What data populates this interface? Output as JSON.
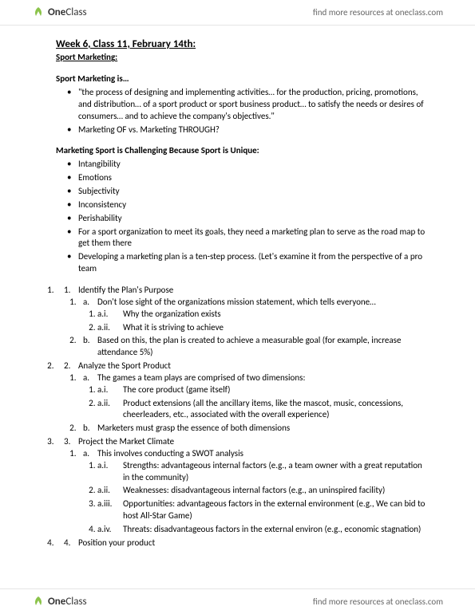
{
  "brand": {
    "logo_one": "One",
    "logo_class": "Class",
    "icon_color": "#8bc34a"
  },
  "header": {
    "link": "find more resources at oneclass.com"
  },
  "footer": {
    "link": "find more resources at oneclass.com"
  },
  "doc": {
    "title": "Week 6, Class 11, February 14th:",
    "subtitle": "Sport Marketing:",
    "section1": {
      "heading": "Sport Marketing is…",
      "bullets": [
        "\"the process of designing and implementing activities… for the production, pricing, promotions, and distribution… of a sport product or sport business product… to satisfy the needs or desires of consumers… and to achieve the company's objectives.\"",
        "Marketing OF vs. Marketing THROUGH?"
      ]
    },
    "section2": {
      "heading": "Marketing Sport is Challenging Because Sport is Unique:",
      "bullets": [
        "Intangibility",
        "Emotions",
        "Subjectivity",
        "Inconsistency",
        "Perishability",
        "For a sport organization to meet its goals, they need a marketing plan to serve as the road map to get them there",
        "Developing a marketing plan is a ten-step process. (Let's examine it from the perspective of a pro team"
      ]
    },
    "steps": [
      {
        "title": "Identify the Plan's Purpose",
        "subs": [
          {
            "text": "Don't lose sight of the organizations mission statement, which tells everyone…",
            "romans": [
              "Why the organization exists",
              "What it is striving to achieve"
            ]
          },
          {
            "text": "Based on this, the plan is created to achieve a measurable goal (for example, increase attendance 5%)"
          }
        ]
      },
      {
        "title": "Analyze the Sport Product",
        "subs": [
          {
            "text": "The games a team plays are comprised of two dimensions:",
            "romans": [
              "The core product (game itself)",
              "Product extensions (all the ancillary items, like the mascot, music, concessions, cheerleaders, etc., associated with the overall experience)"
            ]
          },
          {
            "text": "Marketers must grasp the essence of both dimensions"
          }
        ]
      },
      {
        "title": "Project the Market Climate",
        "subs": [
          {
            "text": "This involves conducting a SWOT analysis",
            "romans": [
              "Strengths: advantageous internal factors (e.g., a team owner with a great reputation in the community)",
              "Weaknesses: disadvantageous internal factors (e.g., an uninspired facility)",
              "Opportunities: advantageous factors in the external environment (e.g., We can bid to host All-Star Game)",
              "Threats: disadvantageous factors in the external environ (e.g., economic stagnation)"
            ]
          }
        ]
      },
      {
        "title": "Position your product"
      }
    ]
  }
}
